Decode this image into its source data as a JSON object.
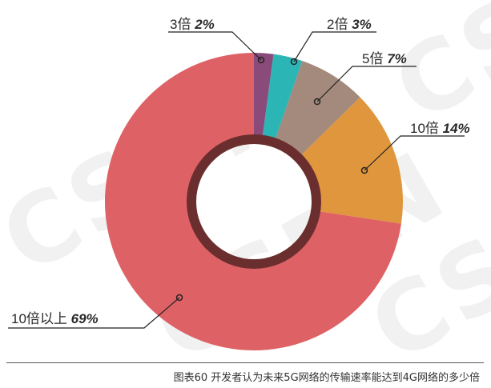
{
  "watermark": {
    "text": "CSDN"
  },
  "caption": "图表60 开发者认为未来5G网络的传输速率能达到4G网络的多少倍",
  "chart_data": {
    "type": "pie",
    "donut": true,
    "start_angle_deg": 0,
    "direction": "clockwise",
    "slices": [
      {
        "label": "3倍",
        "percent_label": "2%",
        "value": 2,
        "color": "#8a4a7a"
      },
      {
        "label": "2倍",
        "percent_label": "3%",
        "value": 3,
        "color": "#2bb5b4"
      },
      {
        "label": "5倍",
        "percent_label": "7%",
        "value": 7,
        "color": "#a48a7c"
      },
      {
        "label": "10倍",
        "percent_label": "14%",
        "value": 14,
        "color": "#e0963c"
      },
      {
        "label": "10倍以上",
        "percent_label": "69%",
        "value": 69,
        "color": "#de6265"
      }
    ],
    "inner_ring_color": "#6b2e2e"
  }
}
